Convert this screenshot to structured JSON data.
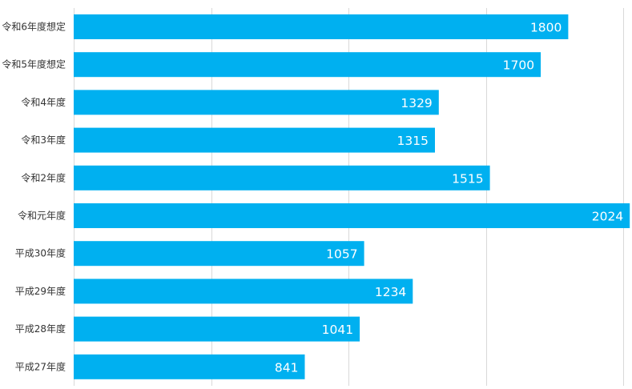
{
  "chart_data": {
    "type": "bar",
    "orientation": "horizontal",
    "categories": [
      "令和6年度想定",
      "令和5年度想定",
      "令和4年度",
      "令和3年度",
      "令和2年度",
      "令和元年度",
      "平成30年度",
      "平成29年度",
      "平成28年度",
      "平成27年度"
    ],
    "values": [
      1800,
      1700,
      1329,
      1315,
      1515,
      2024,
      1057,
      1234,
      1041,
      841
    ],
    "xlim": [
      0,
      2000
    ],
    "grid": true,
    "bar_color": "#00b0f0",
    "gridline_color": "#d9d9d9",
    "data_labels": true,
    "legend": "none"
  }
}
